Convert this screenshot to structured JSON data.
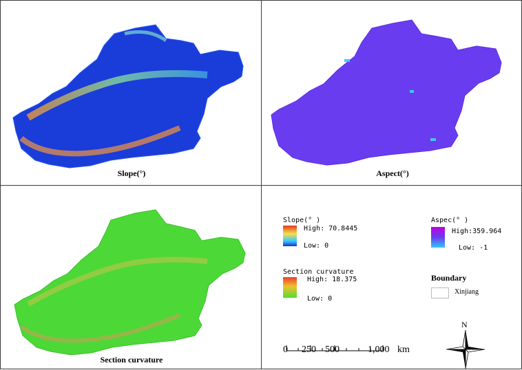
{
  "panels": {
    "slope": {
      "title": "Slope(°)"
    },
    "aspect": {
      "title": "Aspect(°)"
    },
    "curvature": {
      "title": "Section curvature"
    }
  },
  "legend": {
    "slope": {
      "title": "Slope(° )",
      "high": "High: 70.8445",
      "low": "Low: 0",
      "colors": [
        "#e03a1f",
        "#f5e04a",
        "#36c8ff",
        "#1a30d8"
      ]
    },
    "aspect": {
      "title": "Aspec(° )",
      "high": "High:359.964",
      "low": "Low: -1",
      "colors": [
        "#c000e0",
        "#6a3cf0",
        "#30c8ff"
      ]
    },
    "curvature": {
      "title": "Section curvature",
      "high": "High: 18.375",
      "low": "Low: 0",
      "colors": [
        "#e8402a",
        "#f0c030",
        "#50e030"
      ]
    },
    "boundary": {
      "title": "Boundary",
      "item": "Xinjiang"
    }
  },
  "scale_bar": {
    "labels": [
      "0",
      "250",
      "500",
      "1,000"
    ],
    "unit": "km"
  },
  "north_arrow": {
    "label": "N"
  },
  "colors": {
    "border": "#3a3a3a",
    "boundary_swatch": "#bbbbbb"
  }
}
